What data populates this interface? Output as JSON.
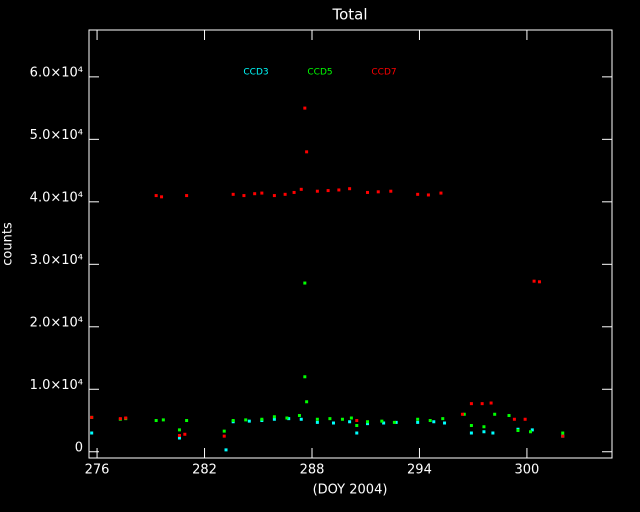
{
  "chart_data": {
    "type": "scatter",
    "title": "Total",
    "xlabel": "(DOY 2004)",
    "ylabel": "counts",
    "xlim": [
      275.55,
      304.75
    ],
    "ylim": [
      -1000,
      67500
    ],
    "xticks": [
      276,
      282,
      288,
      294,
      300
    ],
    "yticks": [
      {
        "value": 0,
        "label": "0"
      },
      {
        "value": 10000,
        "label": "1.0×10⁴"
      },
      {
        "value": 20000,
        "label": "2.0×10⁴"
      },
      {
        "value": 30000,
        "label": "3.0×10⁴"
      },
      {
        "value": 40000,
        "label": "4.0×10⁴"
      },
      {
        "value": 50000,
        "label": "5.0×10⁴"
      },
      {
        "value": 60000,
        "label": "6.0×10⁴"
      }
    ],
    "series": [
      {
        "name": "CCD3",
        "color": "#00ffff",
        "x": [
          275.7,
          280.6,
          283.2,
          283.6,
          284.5,
          285.2,
          285.9,
          286.7,
          287.4,
          288.3,
          289.2,
          290.1,
          290.5,
          291.1,
          292.0,
          292.7,
          293.9,
          294.8,
          295.4,
          296.9,
          297.6,
          298.1,
          299.5,
          300.3,
          302.0
        ],
        "values": [
          3000,
          2200,
          300,
          4800,
          4900,
          5000,
          5200,
          5300,
          5200,
          4700,
          4600,
          4800,
          3000,
          4500,
          4600,
          4700,
          4700,
          4800,
          4600,
          3000,
          3200,
          3000,
          3600,
          3500,
          2500
        ]
      },
      {
        "name": "CCD5",
        "color": "#00ff00",
        "x": [
          275.7,
          277.3,
          277.6,
          279.3,
          279.7,
          280.6,
          281.0,
          283.1,
          283.6,
          284.3,
          285.2,
          285.9,
          286.6,
          287.3,
          287.6,
          287.6,
          287.7,
          288.3,
          289.0,
          289.7,
          290.2,
          290.5,
          291.1,
          291.9,
          292.6,
          293.9,
          294.6,
          295.3,
          296.5,
          296.9,
          297.6,
          298.2,
          299.0,
          299.5,
          300.2,
          302.0
        ],
        "values": [
          5500,
          5200,
          5300,
          5000,
          5100,
          3500,
          5000,
          3300,
          5000,
          5100,
          5200,
          5600,
          5400,
          5800,
          27000,
          12000,
          8000,
          5200,
          5300,
          5200,
          5400,
          4200,
          4800,
          4900,
          4700,
          5200,
          5000,
          5300,
          6000,
          4200,
          4000,
          6000,
          5800,
          3400,
          3200,
          3000
        ]
      },
      {
        "name": "CCD7",
        "color": "#ff0000",
        "x": [
          275.7,
          277.3,
          277.6,
          279.3,
          279.6,
          281.0,
          280.6,
          280.9,
          283.1,
          283.6,
          284.2,
          284.8,
          285.2,
          285.9,
          286.5,
          287.0,
          287.4,
          287.6,
          287.7,
          288.3,
          288.9,
          289.5,
          290.1,
          290.5,
          291.1,
          291.7,
          292.4,
          293.9,
          294.5,
          295.2,
          296.4,
          296.9,
          297.5,
          298.0,
          299.3,
          299.9,
          300.4,
          300.7,
          302.0
        ],
        "values": [
          5500,
          5300,
          5400,
          41000,
          40800,
          41000,
          2600,
          2800,
          2500,
          41200,
          41000,
          41300,
          41400,
          41000,
          41200,
          41500,
          42000,
          55000,
          48000,
          41700,
          41800,
          41900,
          42100,
          5000,
          41500,
          41600,
          41700,
          41200,
          41100,
          41400,
          6000,
          7700,
          7700,
          7800,
          5200,
          5200,
          27300,
          27200,
          2500
        ]
      }
    ]
  }
}
